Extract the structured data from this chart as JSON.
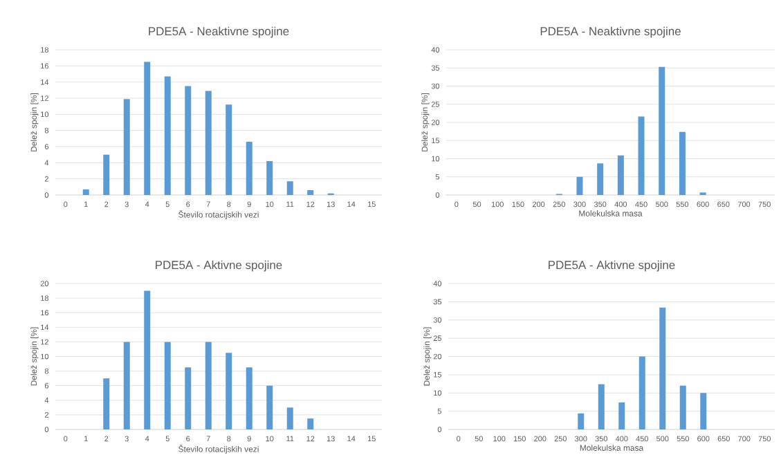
{
  "chart_data": [
    {
      "type": "bar",
      "title": "PDE5A - Neaktivne spojine",
      "xlabel": "Število rotacijskih vezi",
      "ylabel": "Delež spojin [%]",
      "categories": [
        "0",
        "1",
        "2",
        "3",
        "4",
        "5",
        "6",
        "7",
        "8",
        "9",
        "10",
        "11",
        "12",
        "13",
        "14",
        "15"
      ],
      "values": [
        0,
        0.7,
        5,
        11.9,
        16.5,
        14.7,
        13.5,
        12.9,
        11.2,
        6.6,
        4.2,
        1.7,
        0.6,
        0.2,
        0,
        0
      ],
      "color": "#5b9bd5",
      "ylim": [
        0,
        18
      ],
      "yticks": [
        0,
        2,
        4,
        6,
        8,
        10,
        12,
        14,
        16,
        18
      ],
      "grid": "y"
    },
    {
      "type": "bar",
      "title": "PDE5A - Neaktivne spojine",
      "xlabel": "Molekulska masa",
      "ylabel": "Delež spojin [%]",
      "categories": [
        "0",
        "50",
        "100",
        "150",
        "200",
        "250",
        "300",
        "350",
        "400",
        "450",
        "500",
        "550",
        "600",
        "650",
        "700",
        "750"
      ],
      "values": [
        0,
        0,
        0,
        0,
        0,
        0.3,
        5,
        8.7,
        10.9,
        21.6,
        35.3,
        17.4,
        0.7,
        0,
        0,
        0
      ],
      "color": "#5b9bd5",
      "ylim": [
        0,
        40
      ],
      "yticks": [
        0,
        5,
        10,
        15,
        20,
        25,
        30,
        35,
        40
      ],
      "grid": "y"
    },
    {
      "type": "bar",
      "title": "PDE5A - Aktivne spojine",
      "xlabel": "Število rotacijskih vezi",
      "ylabel": "Delež spojin [%]",
      "categories": [
        "0",
        "1",
        "2",
        "3",
        "4",
        "5",
        "6",
        "7",
        "8",
        "9",
        "10",
        "11",
        "12",
        "13",
        "14",
        "15"
      ],
      "values": [
        0,
        0,
        7,
        12,
        19,
        12,
        8.5,
        12,
        10.5,
        8.5,
        6,
        3,
        1.5,
        0,
        0,
        0
      ],
      "color": "#5b9bd5",
      "ylim": [
        0,
        20
      ],
      "yticks": [
        0,
        2,
        4,
        6,
        8,
        10,
        12,
        14,
        16,
        18,
        20
      ],
      "grid": "y"
    },
    {
      "type": "bar",
      "title": "PDE5A - Aktivne spojine",
      "xlabel": "Molekulska masa",
      "ylabel": "Delež spojin [%]",
      "categories": [
        "0",
        "50",
        "100",
        "150",
        "200",
        "250",
        "300",
        "350",
        "400",
        "450",
        "500",
        "550",
        "600",
        "650",
        "700",
        "750"
      ],
      "values": [
        0,
        0,
        0,
        0,
        0,
        0,
        4.4,
        12.4,
        7.4,
        20,
        33.4,
        12,
        10,
        0,
        0,
        0
      ],
      "color": "#5b9bd5",
      "ylim": [
        0,
        40
      ],
      "yticks": [
        0,
        5,
        10,
        15,
        20,
        25,
        30,
        35,
        40
      ],
      "grid": "y"
    }
  ]
}
